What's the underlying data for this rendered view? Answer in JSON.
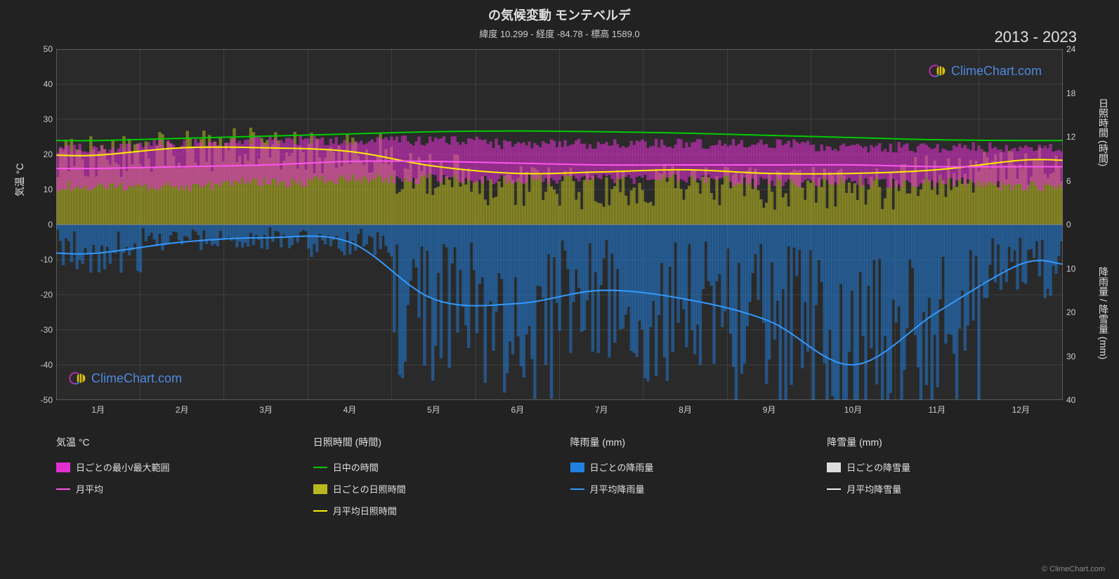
{
  "title": "の気候変動 モンテベルデ",
  "subtitle": "緯度 10.299 - 経度 -84.78 - 標高 1589.0",
  "year_range": "2013 - 2023",
  "watermark_text": "ClimeChart.com",
  "credit": "© ClimeChart.com",
  "chart": {
    "background_color": "#222222",
    "plot_bg_color": "#2a2a2a",
    "grid_color": "#555555",
    "axis_left": {
      "label": "気温 °C",
      "min": -50,
      "max": 50,
      "tick_step": 10,
      "ticks": [
        50,
        40,
        30,
        20,
        10,
        0,
        -10,
        -20,
        -30,
        -40,
        -50
      ],
      "text_color": "#cccccc"
    },
    "axis_right_top": {
      "label": "日照時間 (時間)",
      "min": 0,
      "max": 24,
      "ticks": [
        24,
        18,
        12,
        6,
        0
      ]
    },
    "axis_right_bottom": {
      "label": "降雨量 / 降雪量 (mm)",
      "min": 0,
      "max": 40,
      "ticks": [
        0,
        10,
        20,
        30,
        40
      ]
    },
    "x_axis": {
      "labels": [
        "1月",
        "2月",
        "3月",
        "4月",
        "5月",
        "6月",
        "7月",
        "8月",
        "9月",
        "10月",
        "11月",
        "12月"
      ]
    },
    "series": {
      "temp_range": {
        "type": "band",
        "color": "#e030d0",
        "opacity": 0.55,
        "min": [
          11,
          11,
          12,
          13,
          13,
          13,
          13,
          13,
          12,
          12,
          12,
          11
        ],
        "max": [
          22,
          23,
          24,
          24,
          24,
          23,
          23,
          23,
          23,
          22,
          22,
          22
        ]
      },
      "temp_avg": {
        "type": "line",
        "color": "#ff55ee",
        "width": 2,
        "values": [
          16,
          16.5,
          17,
          18,
          18,
          17.5,
          17,
          17,
          17,
          17,
          16.5,
          16.5
        ]
      },
      "daylight": {
        "type": "line",
        "color": "#00cc00",
        "width": 2,
        "values_hours": [
          11.5,
          11.8,
          12.1,
          12.4,
          12.7,
          12.8,
          12.7,
          12.5,
          12.2,
          11.9,
          11.6,
          11.5
        ]
      },
      "sunshine_daily": {
        "type": "bars",
        "color": "#b8b820",
        "opacity": 0.55,
        "values_hours": [
          9.5,
          10,
          10.5,
          10,
          7,
          5.5,
          5,
          5.5,
          5,
          5,
          6.5,
          8
        ]
      },
      "sunshine_avg": {
        "type": "line",
        "color": "#ffee00",
        "width": 2,
        "values_hours": [
          9.5,
          10.5,
          10.5,
          10,
          8,
          7,
          7.2,
          7.5,
          7,
          7,
          7.5,
          8.8
        ]
      },
      "rain_daily": {
        "type": "bars",
        "color": "#2080e0",
        "opacity": 0.5,
        "values_mm": [
          6,
          3,
          3,
          4,
          18,
          20,
          16,
          18,
          22,
          32,
          22,
          9
        ]
      },
      "rain_avg": {
        "type": "line",
        "color": "#3399ff",
        "width": 2,
        "values_mm": [
          6.5,
          4,
          3,
          4,
          17,
          18,
          15,
          17,
          22,
          32,
          20,
          9
        ]
      }
    }
  },
  "legend": {
    "groups": [
      {
        "header": "気温 °C",
        "items": [
          {
            "swatch_type": "block",
            "color": "#e030d0",
            "label": "日ごとの最小/最大範囲"
          },
          {
            "swatch_type": "line",
            "color": "#ff55ee",
            "label": "月平均"
          }
        ]
      },
      {
        "header": "日照時間 (時間)",
        "items": [
          {
            "swatch_type": "line",
            "color": "#00cc00",
            "label": "日中の時間"
          },
          {
            "swatch_type": "block",
            "color": "#b8b820",
            "label": "日ごとの日照時間"
          },
          {
            "swatch_type": "line",
            "color": "#ffee00",
            "label": "月平均日照時間"
          }
        ]
      },
      {
        "header": "降雨量 (mm)",
        "items": [
          {
            "swatch_type": "block",
            "color": "#2080e0",
            "label": "日ごとの降雨量"
          },
          {
            "swatch_type": "line",
            "color": "#3399ff",
            "label": "月平均降雨量"
          }
        ]
      },
      {
        "header": "降雪量 (mm)",
        "items": [
          {
            "swatch_type": "block",
            "color": "#dddddd",
            "label": "日ごとの降雪量"
          },
          {
            "swatch_type": "line",
            "color": "#eeeeee",
            "label": "月平均降雪量"
          }
        ]
      }
    ]
  }
}
